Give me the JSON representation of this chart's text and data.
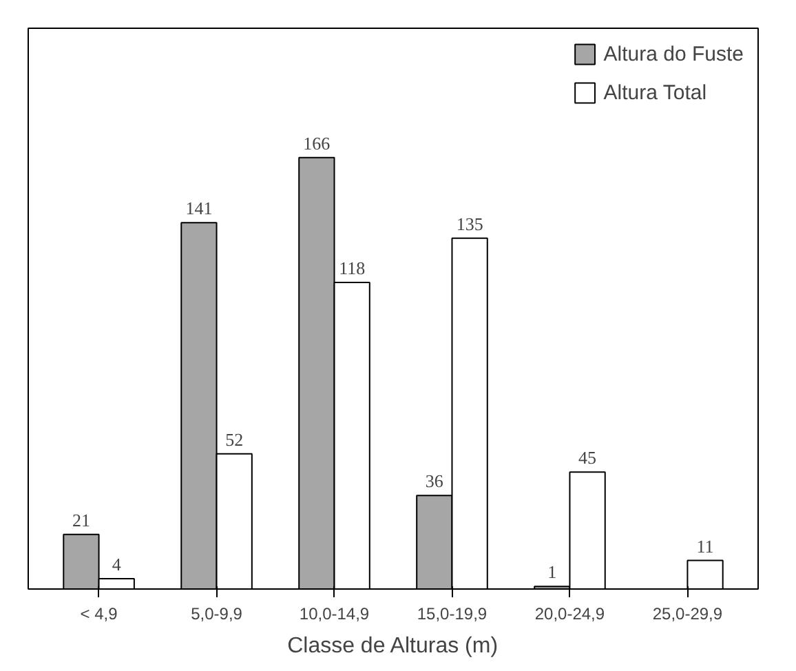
{
  "chart_data": {
    "type": "bar",
    "xlabel": "Classe de Alturas (m)",
    "categories": [
      "< 4,9",
      "5,0-9,9",
      "10,0-14,9",
      "15,0-19,9",
      "20,0-24,9",
      "25,0-29,9"
    ],
    "series": [
      {
        "name": "Altura do Fuste",
        "color": "#a6a6a6",
        "values": [
          21,
          141,
          166,
          36,
          1,
          null
        ]
      },
      {
        "name": "Altura Total",
        "color": "#ffffff",
        "values": [
          4,
          52,
          118,
          135,
          45,
          11
        ]
      }
    ],
    "data_labels": true,
    "legend": "top right",
    "grid": false
  }
}
